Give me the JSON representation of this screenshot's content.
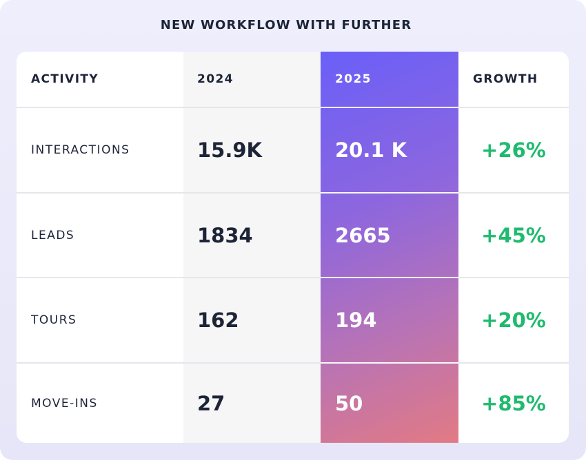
{
  "title": "NEW WORKFLOW WITH FURTHER",
  "headers": {
    "activity": "ACTIVITY",
    "y2024": "2024",
    "y2025": "2025",
    "growth": "GROWTH"
  },
  "rows": [
    {
      "activity": "INTERACTIONS",
      "v2024": "15.9K",
      "v2025": "20.1 K",
      "growth": "+26%"
    },
    {
      "activity": "LEADS",
      "v2024": "1834",
      "v2025": "2665",
      "growth": "+45%"
    },
    {
      "activity": "TOURS",
      "v2024": "162",
      "v2025": "194",
      "growth": "+20%"
    },
    {
      "activity": "MOVE-INS",
      "v2024": "27",
      "v2025": "50",
      "growth": "+85%"
    }
  ],
  "colors": {
    "text": "#1d2438",
    "growth": "#1fba6e",
    "highlight_start": "#6a5ff8",
    "highlight_end": "#e27a84",
    "background": "#eeeefc"
  }
}
